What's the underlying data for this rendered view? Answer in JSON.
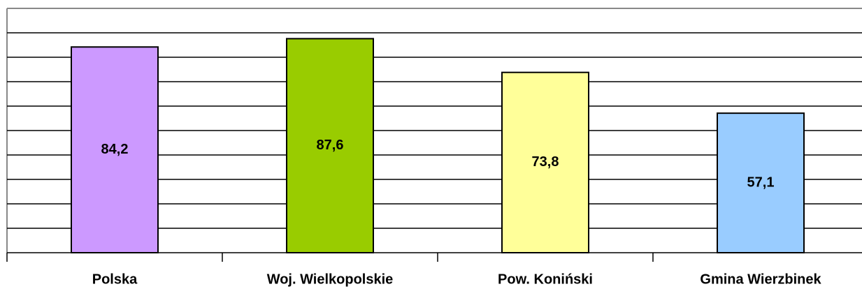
{
  "chart_data": {
    "type": "bar",
    "categories": [
      "Polska",
      "Woj. Wielkopolskie",
      "Pow. Koniński",
      "Gmina Wierzbinek"
    ],
    "values": [
      84.2,
      87.6,
      73.8,
      57.1
    ],
    "value_labels": [
      "84,2",
      "87,6",
      "73,8",
      "57,1"
    ],
    "colors": [
      "#cc99ff",
      "#99cc00",
      "#ffff99",
      "#99ccff"
    ],
    "ylim": [
      0,
      100
    ],
    "yticks": [
      0,
      10,
      20,
      30,
      40,
      50,
      60,
      70,
      80,
      90,
      100
    ],
    "grid": true
  }
}
